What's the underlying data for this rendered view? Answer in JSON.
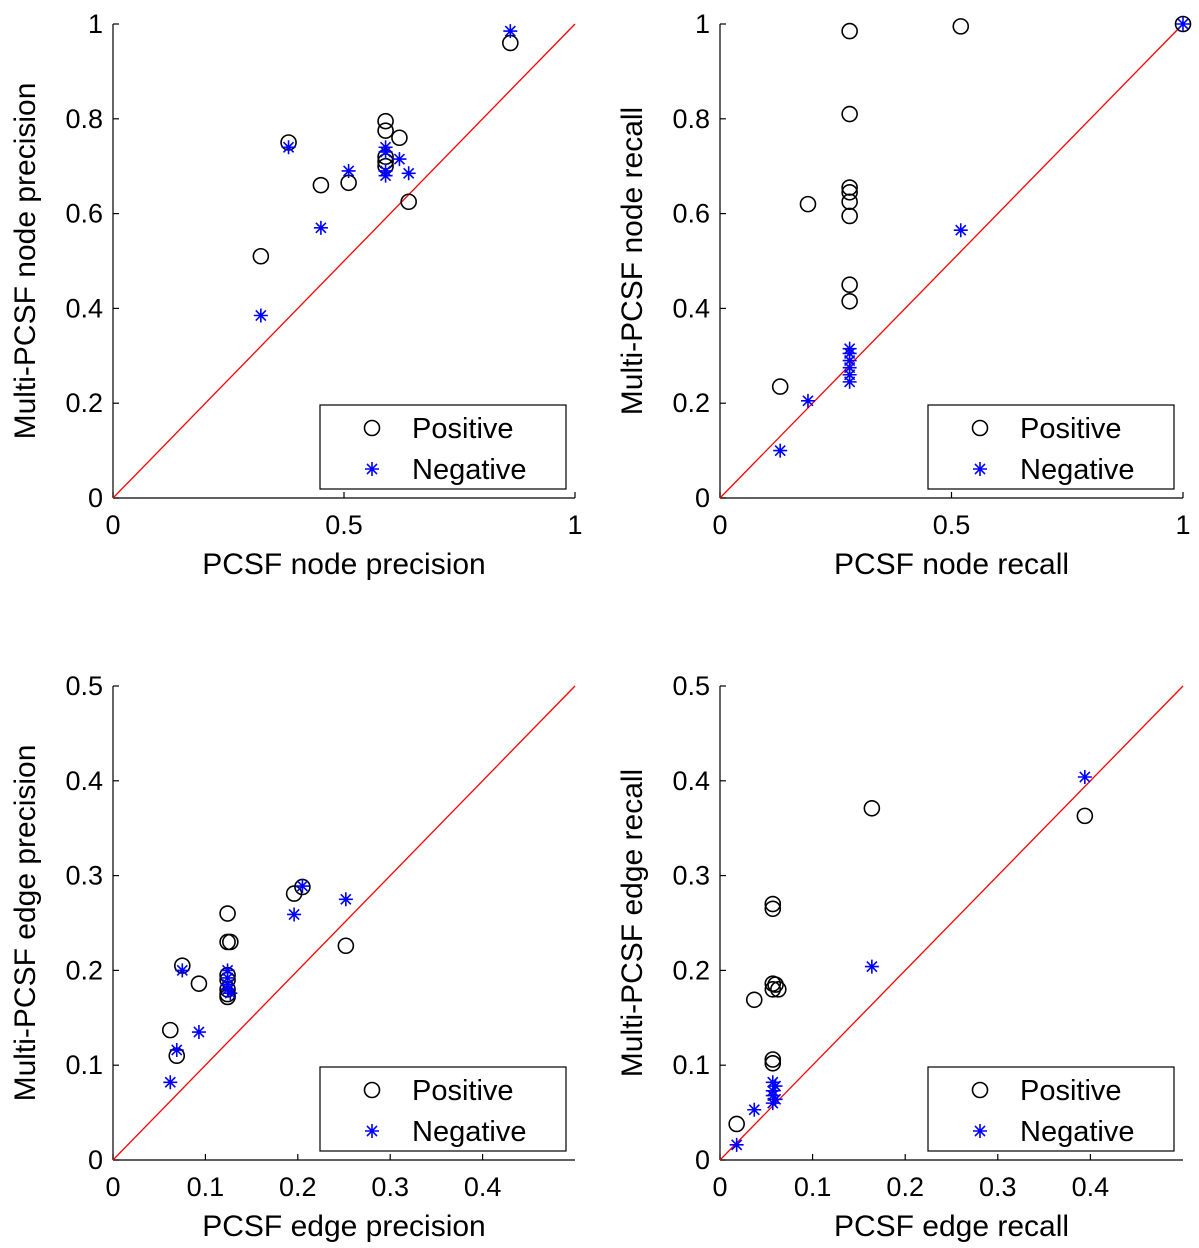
{
  "chart_data": [
    {
      "type": "scatter",
      "xlabel": "PCSF node precision",
      "ylabel": "Multi-PCSF node precision",
      "xlim": [
        0,
        1
      ],
      "ylim": [
        0,
        1
      ],
      "xticks": [
        "0",
        "0.5",
        "1"
      ],
      "yticks": [
        "0",
        "0.2",
        "0.4",
        "0.6",
        "0.8",
        "1"
      ],
      "xtick_values": [
        0,
        0.5,
        1
      ],
      "ytick_values": [
        0,
        0.2,
        0.4,
        0.6,
        0.8,
        1
      ],
      "grid": false,
      "legend_position": "bottom-right",
      "reference_line": "y = x",
      "series": [
        {
          "name": "Positive",
          "marker": "circle",
          "color": "#000000",
          "points": [
            [
              0.32,
              0.51
            ],
            [
              0.38,
              0.75
            ],
            [
              0.45,
              0.66
            ],
            [
              0.51,
              0.665
            ],
            [
              0.59,
              0.795
            ],
            [
              0.59,
              0.775
            ],
            [
              0.59,
              0.72
            ],
            [
              0.59,
              0.71
            ],
            [
              0.59,
              0.7
            ],
            [
              0.62,
              0.76
            ],
            [
              0.64,
              0.625
            ],
            [
              0.86,
              0.96
            ]
          ]
        },
        {
          "name": "Negative",
          "marker": "asterisk",
          "color": "#0000ff",
          "points": [
            [
              0.32,
              0.385
            ],
            [
              0.38,
              0.74
            ],
            [
              0.45,
              0.57
            ],
            [
              0.51,
              0.69
            ],
            [
              0.59,
              0.74
            ],
            [
              0.59,
              0.73
            ],
            [
              0.59,
              0.69
            ],
            [
              0.59,
              0.68
            ],
            [
              0.62,
              0.715
            ],
            [
              0.64,
              0.685
            ],
            [
              0.86,
              0.985
            ]
          ]
        }
      ]
    },
    {
      "type": "scatter",
      "xlabel": "PCSF node recall",
      "ylabel": "Multi-PCSF node recall",
      "xlim": [
        0,
        1
      ],
      "ylim": [
        0,
        1
      ],
      "xticks": [
        "0",
        "0.5",
        "1"
      ],
      "yticks": [
        "0",
        "0.2",
        "0.4",
        "0.6",
        "0.8",
        "1"
      ],
      "xtick_values": [
        0,
        0.5,
        1
      ],
      "ytick_values": [
        0,
        0.2,
        0.4,
        0.6,
        0.8,
        1
      ],
      "grid": false,
      "legend_position": "bottom-right",
      "reference_line": "y = x",
      "series": [
        {
          "name": "Positive",
          "marker": "circle",
          "color": "#000000",
          "points": [
            [
              0.13,
              0.235
            ],
            [
              0.19,
              0.62
            ],
            [
              0.28,
              0.985
            ],
            [
              0.28,
              0.81
            ],
            [
              0.28,
              0.655
            ],
            [
              0.28,
              0.645
            ],
            [
              0.28,
              0.625
            ],
            [
              0.28,
              0.595
            ],
            [
              0.28,
              0.45
            ],
            [
              0.28,
              0.415
            ],
            [
              0.52,
              0.995
            ],
            [
              1.0,
              1.0
            ]
          ]
        },
        {
          "name": "Negative",
          "marker": "asterisk",
          "color": "#0000ff",
          "points": [
            [
              0.13,
              0.1
            ],
            [
              0.19,
              0.205
            ],
            [
              0.28,
              0.315
            ],
            [
              0.28,
              0.305
            ],
            [
              0.28,
              0.29
            ],
            [
              0.28,
              0.275
            ],
            [
              0.28,
              0.26
            ],
            [
              0.28,
              0.245
            ],
            [
              0.52,
              0.565
            ],
            [
              1.0,
              1.0
            ]
          ]
        }
      ]
    },
    {
      "type": "scatter",
      "xlabel": "PCSF edge precision",
      "ylabel": "Multi-PCSF edge precision",
      "xlim": [
        0,
        0.5
      ],
      "ylim": [
        0,
        0.5
      ],
      "xticks": [
        "0",
        "0.1",
        "0.2",
        "0.3",
        "0.4"
      ],
      "yticks": [
        "0",
        "0.1",
        "0.2",
        "0.3",
        "0.4",
        "0.5"
      ],
      "xtick_values": [
        0,
        0.1,
        0.2,
        0.3,
        0.4
      ],
      "ytick_values": [
        0,
        0.1,
        0.2,
        0.3,
        0.4,
        0.5
      ],
      "grid": false,
      "legend_position": "bottom-right",
      "reference_line": "y = x",
      "series": [
        {
          "name": "Positive",
          "marker": "circle",
          "color": "#000000",
          "points": [
            [
              0.062,
              0.137
            ],
            [
              0.069,
              0.11
            ],
            [
              0.075,
              0.205
            ],
            [
              0.093,
              0.186
            ],
            [
              0.124,
              0.26
            ],
            [
              0.124,
              0.23
            ],
            [
              0.127,
              0.23
            ],
            [
              0.124,
              0.195
            ],
            [
              0.124,
              0.19
            ],
            [
              0.124,
              0.18
            ],
            [
              0.124,
              0.175
            ],
            [
              0.124,
              0.172
            ],
            [
              0.196,
              0.281
            ],
            [
              0.205,
              0.288
            ],
            [
              0.252,
              0.226
            ]
          ]
        },
        {
          "name": "Negative",
          "marker": "asterisk",
          "color": "#0000ff",
          "points": [
            [
              0.062,
              0.082
            ],
            [
              0.069,
              0.116
            ],
            [
              0.075,
              0.2
            ],
            [
              0.093,
              0.135
            ],
            [
              0.124,
              0.2
            ],
            [
              0.124,
              0.192
            ],
            [
              0.124,
              0.185
            ],
            [
              0.124,
              0.18
            ],
            [
              0.127,
              0.176
            ],
            [
              0.196,
              0.259
            ],
            [
              0.205,
              0.289
            ],
            [
              0.252,
              0.275
            ]
          ]
        }
      ]
    },
    {
      "type": "scatter",
      "xlabel": "PCSF edge recall",
      "ylabel": "Multi-PCSF edge recall",
      "xlim": [
        0,
        0.5
      ],
      "ylim": [
        0,
        0.5
      ],
      "xticks": [
        "0",
        "0.1",
        "0.2",
        "0.3",
        "0.4"
      ],
      "yticks": [
        "0",
        "0.1",
        "0.2",
        "0.3",
        "0.4",
        "0.5"
      ],
      "xtick_values": [
        0,
        0.1,
        0.2,
        0.3,
        0.4
      ],
      "ytick_values": [
        0,
        0.1,
        0.2,
        0.3,
        0.4,
        0.5
      ],
      "grid": false,
      "legend_position": "bottom-right",
      "reference_line": "y = x",
      "series": [
        {
          "name": "Positive",
          "marker": "circle",
          "color": "#000000",
          "points": [
            [
              0.018,
              0.038
            ],
            [
              0.037,
              0.169
            ],
            [
              0.057,
              0.27
            ],
            [
              0.057,
              0.265
            ],
            [
              0.057,
              0.186
            ],
            [
              0.06,
              0.185
            ],
            [
              0.057,
              0.18
            ],
            [
              0.063,
              0.18
            ],
            [
              0.057,
              0.106
            ],
            [
              0.057,
              0.102
            ],
            [
              0.164,
              0.371
            ],
            [
              0.394,
              0.363
            ]
          ]
        },
        {
          "name": "Negative",
          "marker": "asterisk",
          "color": "#0000ff",
          "points": [
            [
              0.018,
              0.016
            ],
            [
              0.037,
              0.053
            ],
            [
              0.057,
              0.082
            ],
            [
              0.06,
              0.078
            ],
            [
              0.057,
              0.073
            ],
            [
              0.057,
              0.068
            ],
            [
              0.06,
              0.064
            ],
            [
              0.057,
              0.06
            ],
            [
              0.164,
              0.204
            ],
            [
              0.394,
              0.404
            ]
          ]
        }
      ]
    }
  ]
}
